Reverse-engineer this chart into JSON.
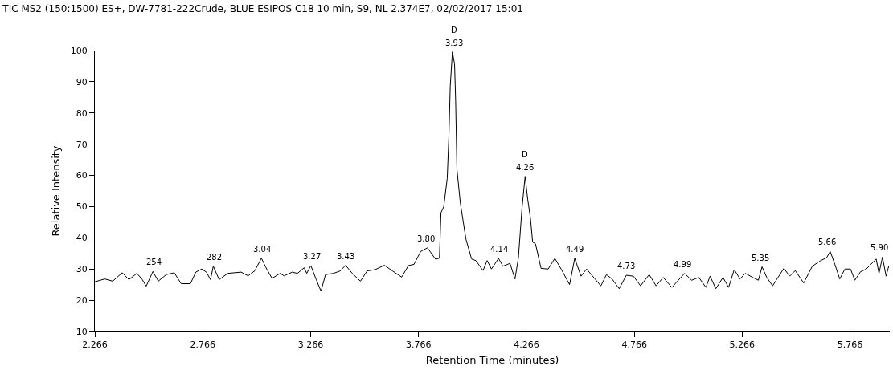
{
  "chart_data": {
    "type": "line",
    "title": "TIC MS2 (150:1500) ES+, DW-7781-222Crude, BLUE ESIPOS C18 10 min, S9, NL 2.374E7, 02/02/2017 15:01",
    "xlabel": "Retention Time (minutes)",
    "ylabel": "Relative Intensity",
    "x": [
      2.266,
      2.312,
      2.349,
      2.393,
      2.424,
      2.461,
      2.486,
      2.504,
      2.535,
      2.56,
      2.597,
      2.634,
      2.666,
      2.709,
      2.734,
      2.761,
      2.783,
      2.802,
      2.815,
      2.842,
      2.882,
      2.944,
      2.976,
      3.007,
      3.038,
      3.057,
      3.087,
      3.125,
      3.143,
      3.181,
      3.205,
      3.236,
      3.248,
      3.267,
      3.292,
      3.314,
      3.335,
      3.372,
      3.404,
      3.428,
      3.459,
      3.497,
      3.528,
      3.565,
      3.608,
      3.645,
      3.688,
      3.719,
      3.745,
      3.776,
      3.807,
      3.82,
      3.845,
      3.863,
      3.87,
      3.883,
      3.899,
      3.907,
      3.913,
      3.923,
      3.933,
      3.938,
      3.944,
      3.96,
      3.986,
      4.012,
      4.032,
      4.065,
      4.084,
      4.104,
      4.137,
      4.157,
      4.19,
      4.213,
      4.229,
      4.245,
      4.26,
      4.272,
      4.285,
      4.295,
      4.308,
      4.334,
      4.367,
      4.398,
      4.427,
      4.466,
      4.49,
      4.519,
      4.545,
      4.584,
      4.611,
      4.637,
      4.663,
      4.696,
      4.729,
      4.762,
      4.795,
      4.835,
      4.867,
      4.9,
      4.94,
      4.999,
      5.032,
      5.065,
      5.098,
      5.117,
      5.144,
      5.177,
      5.203,
      5.229,
      5.256,
      5.28,
      5.315,
      5.341,
      5.358,
      5.38,
      5.407,
      5.459,
      5.486,
      5.512,
      5.551,
      5.591,
      5.63,
      5.657,
      5.674,
      5.696,
      5.718,
      5.742,
      5.768,
      5.788,
      5.814,
      5.841,
      5.861,
      5.887,
      5.9,
      5.916,
      5.933,
      5.945
    ],
    "series": [
      {
        "color": "#000000",
        "values": [
          25.9,
          26.8,
          26.1,
          28.8,
          26.6,
          28.6,
          26.6,
          24.5,
          29.2,
          26.1,
          28.2,
          28.8,
          25.3,
          25.3,
          29,
          30,
          29,
          26.6,
          30.9,
          26.6,
          28.6,
          29,
          27.8,
          29.4,
          33.5,
          30.7,
          27,
          28.6,
          27.8,
          29,
          28.6,
          30.4,
          28.6,
          31.1,
          26.6,
          22.9,
          28.2,
          28.6,
          29.4,
          31.2,
          28.6,
          26.1,
          29.4,
          29.8,
          31.2,
          29.4,
          27.4,
          31.1,
          31.5,
          35.6,
          36.8,
          35.6,
          33.1,
          33.5,
          48,
          50,
          59,
          73,
          88.5,
          99.6,
          95.7,
          84,
          62,
          51,
          39.5,
          33.2,
          32.7,
          29.5,
          32.7,
          30,
          33.4,
          30.9,
          31.8,
          26.8,
          33.6,
          49,
          59.7,
          52.4,
          46.1,
          38.6,
          38.1,
          30.2,
          30,
          33.4,
          30,
          25,
          33.4,
          27.7,
          30,
          26.8,
          24.6,
          28.2,
          26.8,
          23.7,
          28,
          27.7,
          24.6,
          28.2,
          24.6,
          27.3,
          24.1,
          28.6,
          26.4,
          27.3,
          24.1,
          27.7,
          23.7,
          27.3,
          24.1,
          29.8,
          26.8,
          28.6,
          27.3,
          26.4,
          30.7,
          27.3,
          24.6,
          30.2,
          27.7,
          29.5,
          25.5,
          30.9,
          32.7,
          33.6,
          35.6,
          31.4,
          26.8,
          30,
          30,
          26.4,
          29.1,
          30,
          31.4,
          33.2,
          28.6,
          33.8,
          27.7,
          30.9
        ]
      }
    ],
    "xlim": [
      2.266,
      5.95
    ],
    "xticks": [
      2.266,
      2.766,
      3.266,
      3.766,
      4.266,
      4.766,
      5.266,
      5.766
    ],
    "ylim": [
      10,
      100
    ],
    "yticks": [
      10,
      20,
      30,
      40,
      50,
      60,
      70,
      80,
      90,
      100
    ],
    "grid": false,
    "marker": "none",
    "line_style": "solid",
    "annotations": [
      {
        "text": "254",
        "x": 2.54,
        "y": 29.2
      },
      {
        "text": "282",
        "x": 2.82,
        "y": 30.9
      },
      {
        "text": "3.04",
        "x": 3.04,
        "y": 33.5
      },
      {
        "text": "3.27",
        "x": 3.27,
        "y": 31.1
      },
      {
        "text": "3.43",
        "x": 3.43,
        "y": 31.2
      },
      {
        "text": "3.80",
        "x": 3.8,
        "y": 36.8
      },
      {
        "text": "3.93",
        "x": 3.93,
        "y": 99.6
      },
      {
        "text": "D",
        "x": 3.93,
        "y": 99.6
      },
      {
        "text": "4.14",
        "x": 4.14,
        "y": 33.4
      },
      {
        "text": "4.26",
        "x": 4.26,
        "y": 59.7
      },
      {
        "text": "D",
        "x": 4.26,
        "y": 59.7
      },
      {
        "text": "4.49",
        "x": 4.49,
        "y": 33.4
      },
      {
        "text": "4.73",
        "x": 4.73,
        "y": 28
      },
      {
        "text": "4.99",
        "x": 4.99,
        "y": 28.6
      },
      {
        "text": "5.35",
        "x": 5.35,
        "y": 30.7
      },
      {
        "text": "5.66",
        "x": 5.66,
        "y": 35.6
      },
      {
        "text": "5.90",
        "x": 5.9,
        "y": 33.8
      }
    ]
  }
}
